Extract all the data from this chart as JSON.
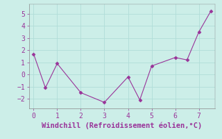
{
  "x": [
    0,
    0.5,
    1.0,
    2.0,
    3.0,
    4.0,
    4.5,
    5.0,
    6.0,
    6.5,
    7.0,
    7.5
  ],
  "y": [
    1.7,
    -1.1,
    0.9,
    -1.5,
    -2.3,
    -0.2,
    -2.1,
    0.7,
    1.4,
    1.2,
    3.5,
    5.2
  ],
  "line_color": "#993399",
  "marker": "D",
  "marker_size": 2.5,
  "xlabel": "Windchill (Refroidissement éolien,°C)",
  "xlabel_fontsize": 7.5,
  "xlabel_color": "#993399",
  "bg_color": "#cceee8",
  "grid_color": "#b0ddd8",
  "tick_color": "#993399",
  "tick_fontsize": 7,
  "xlim": [
    -0.2,
    7.7
  ],
  "ylim": [
    -2.8,
    5.8
  ],
  "yticks": [
    -2,
    -1,
    0,
    1,
    2,
    3,
    4,
    5
  ],
  "xticks": [
    0,
    1,
    2,
    3,
    4,
    5,
    6,
    7
  ]
}
